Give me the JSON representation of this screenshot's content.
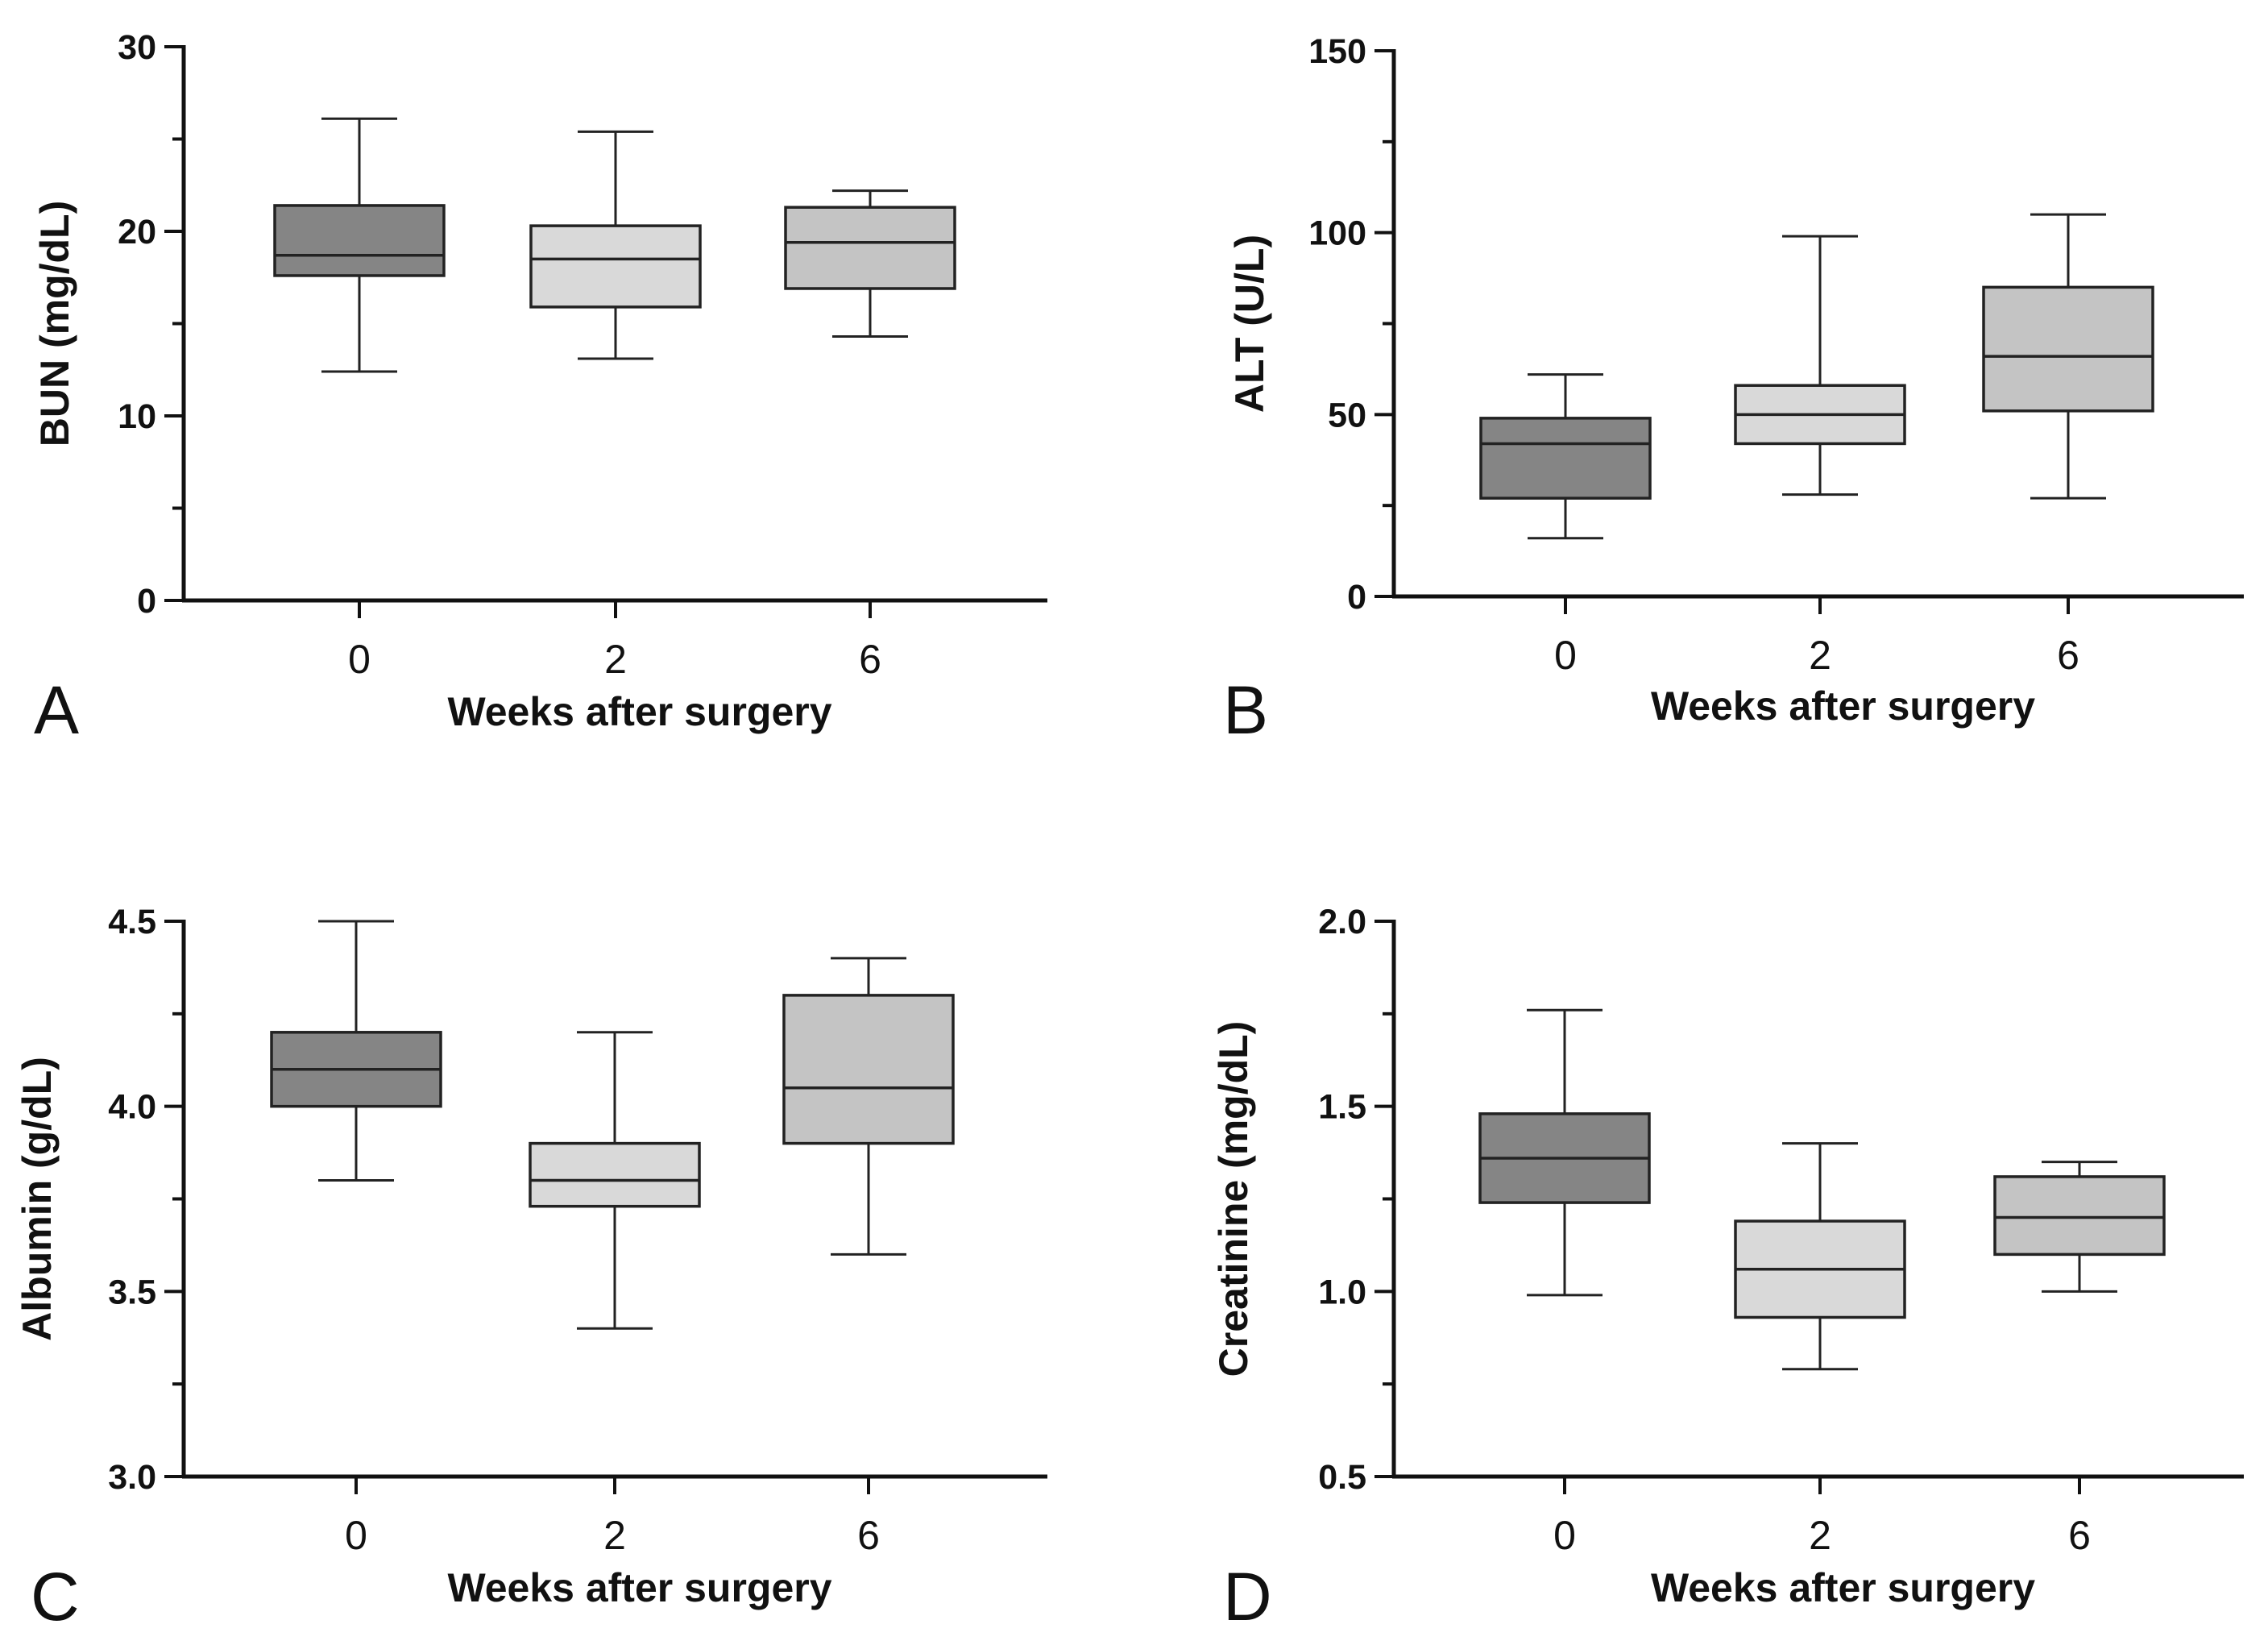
{
  "chart_data": [
    {
      "panel": "A",
      "type": "box",
      "xlabel": "Weeks after surgery",
      "ylabel": "BUN (mg/dL)",
      "ylim": [
        0,
        30
      ],
      "yticks_major": [
        0,
        10,
        20,
        30
      ],
      "yticks_minor": [
        5,
        15,
        25
      ],
      "categories": [
        "0",
        "2",
        "6"
      ],
      "boxes": [
        {
          "category": "0",
          "min": 12.4,
          "q1": 17.6,
          "median": 18.7,
          "q3": 21.4,
          "max": 26.1,
          "color": "#858585"
        },
        {
          "category": "2",
          "min": 13.1,
          "q1": 15.9,
          "median": 18.5,
          "q3": 20.3,
          "max": 25.4,
          "color": "#d9d9d9"
        },
        {
          "category": "6",
          "min": 14.3,
          "q1": 16.9,
          "median": 19.4,
          "q3": 21.3,
          "max": 22.2,
          "color": "#c4c4c4"
        }
      ]
    },
    {
      "panel": "B",
      "type": "box",
      "xlabel": "Weeks after surgery",
      "ylabel": "ALT (U/L)",
      "ylim": [
        0,
        150
      ],
      "yticks_major": [
        0,
        50,
        100,
        150
      ],
      "yticks_minor": [
        25,
        75,
        125
      ],
      "categories": [
        "0",
        "2",
        "6"
      ],
      "boxes": [
        {
          "category": "0",
          "min": 16,
          "q1": 27,
          "median": 42,
          "q3": 49,
          "max": 61,
          "color": "#858585"
        },
        {
          "category": "2",
          "min": 28,
          "q1": 42,
          "median": 50,
          "q3": 58,
          "max": 99,
          "color": "#d9d9d9"
        },
        {
          "category": "6",
          "min": 27,
          "q1": 51,
          "median": 66,
          "q3": 85,
          "max": 105,
          "color": "#c4c4c4"
        }
      ]
    },
    {
      "panel": "C",
      "type": "box",
      "xlabel": "Weeks after surgery",
      "ylabel": "Albumin (g/dL)",
      "ylim": [
        3.0,
        4.5
      ],
      "yticks_major": [
        3.0,
        3.5,
        4.0,
        4.5
      ],
      "yticks_minor": [
        3.25,
        3.75,
        4.25
      ],
      "tick_decimals": 1,
      "categories": [
        "0",
        "2",
        "6"
      ],
      "boxes": [
        {
          "category": "0",
          "min": 3.8,
          "q1": 4.0,
          "median": 4.1,
          "q3": 4.2,
          "max": 4.5,
          "color": "#858585"
        },
        {
          "category": "2",
          "min": 3.4,
          "q1": 3.73,
          "median": 3.8,
          "q3": 3.9,
          "max": 4.2,
          "color": "#d9d9d9"
        },
        {
          "category": "6",
          "min": 3.6,
          "q1": 3.9,
          "median": 4.05,
          "q3": 4.3,
          "max": 4.4,
          "color": "#c4c4c4"
        }
      ]
    },
    {
      "panel": "D",
      "type": "box",
      "xlabel": "Weeks after surgery",
      "ylabel": "Creatinine (mg/dL)",
      "ylim": [
        0.5,
        2.0
      ],
      "yticks_major": [
        0.5,
        1.0,
        1.5,
        2.0
      ],
      "yticks_minor": [
        0.75,
        1.25,
        1.75
      ],
      "tick_decimals": 1,
      "categories": [
        "0",
        "2",
        "6"
      ],
      "boxes": [
        {
          "category": "0",
          "min": 0.99,
          "q1": 1.24,
          "median": 1.36,
          "q3": 1.48,
          "max": 1.76,
          "color": "#858585"
        },
        {
          "category": "2",
          "min": 0.79,
          "q1": 0.93,
          "median": 1.06,
          "q3": 1.19,
          "max": 1.4,
          "color": "#d9d9d9"
        },
        {
          "category": "6",
          "min": 1.0,
          "q1": 1.1,
          "median": 1.2,
          "q3": 1.31,
          "max": 1.35,
          "color": "#c4c4c4"
        }
      ]
    }
  ]
}
